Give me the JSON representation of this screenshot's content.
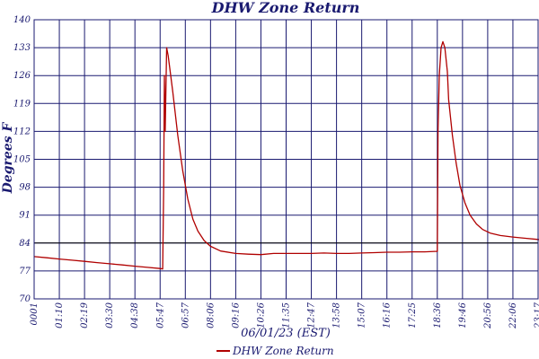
{
  "chart_data": {
    "type": "line",
    "title": "DHW Zone Return",
    "xlabel": "06/01/23 (EST)",
    "ylabel": "Degrees F",
    "ylim": [
      70,
      140
    ],
    "yticks": [
      "70",
      "77",
      "84",
      "91",
      "98",
      "105",
      "112",
      "119",
      "126",
      "133",
      "140"
    ],
    "xticks": [
      "0001",
      "01:10",
      "02:19",
      "03:30",
      "04:38",
      "05:47",
      "06:57",
      "08:06",
      "09:16",
      "10:26",
      "11:35",
      "12:47",
      "13:58",
      "15:07",
      "16:16",
      "17:25",
      "18:36",
      "19:46",
      "20:56",
      "22:06",
      "23:17"
    ],
    "grid": true,
    "legend_position": "bottom",
    "colors": {
      "series": "#b00000",
      "grid": "#1a1a70",
      "text": "#1a1a70",
      "reference": "#000000"
    },
    "reference_line_y": 84,
    "series": [
      {
        "name": "DHW Zone Return",
        "points": [
          [
            0,
            80.6
          ],
          [
            0.5,
            80.3
          ],
          [
            1,
            80.0
          ],
          [
            1.5,
            79.7
          ],
          [
            2,
            79.4
          ],
          [
            2.5,
            79.1
          ],
          [
            3,
            78.8
          ],
          [
            3.5,
            78.5
          ],
          [
            4,
            78.2
          ],
          [
            4.5,
            77.9
          ],
          [
            5,
            77.6
          ],
          [
            5.1,
            77.5
          ],
          [
            5.14,
            98
          ],
          [
            5.17,
            126
          ],
          [
            5.2,
            112
          ],
          [
            5.26,
            133
          ],
          [
            5.32,
            131
          ],
          [
            5.5,
            122
          ],
          [
            5.7,
            111
          ],
          [
            5.9,
            102
          ],
          [
            6.1,
            95
          ],
          [
            6.3,
            90
          ],
          [
            6.5,
            87
          ],
          [
            6.75,
            84.6
          ],
          [
            7,
            83.2
          ],
          [
            7.4,
            82
          ],
          [
            8,
            81.4
          ],
          [
            8.5,
            81.2
          ],
          [
            9,
            81.1
          ],
          [
            9.5,
            81.4
          ],
          [
            10,
            81.4
          ],
          [
            10.5,
            81.4
          ],
          [
            11,
            81.4
          ],
          [
            11.5,
            81.5
          ],
          [
            12,
            81.4
          ],
          [
            12.5,
            81.4
          ],
          [
            13,
            81.5
          ],
          [
            13.5,
            81.6
          ],
          [
            14,
            81.7
          ],
          [
            14.5,
            81.7
          ],
          [
            15,
            81.8
          ],
          [
            15.5,
            81.8
          ],
          [
            15.9,
            81.9
          ],
          [
            16,
            81.9
          ],
          [
            16.03,
            112
          ],
          [
            16.08,
            126
          ],
          [
            16.15,
            133
          ],
          [
            16.22,
            134.5
          ],
          [
            16.3,
            133
          ],
          [
            16.4,
            127
          ],
          [
            16.45,
            120
          ],
          [
            16.5,
            117
          ],
          [
            16.6,
            111
          ],
          [
            16.75,
            104
          ],
          [
            16.9,
            98.5
          ],
          [
            17.1,
            94
          ],
          [
            17.3,
            91
          ],
          [
            17.55,
            88.8
          ],
          [
            17.8,
            87.4
          ],
          [
            18.1,
            86.5
          ],
          [
            18.5,
            85.9
          ],
          [
            19,
            85.5
          ],
          [
            19.5,
            85.2
          ],
          [
            20,
            84.9
          ],
          [
            20.5,
            84.5
          ],
          [
            21,
            84.1
          ]
        ]
      }
    ]
  }
}
